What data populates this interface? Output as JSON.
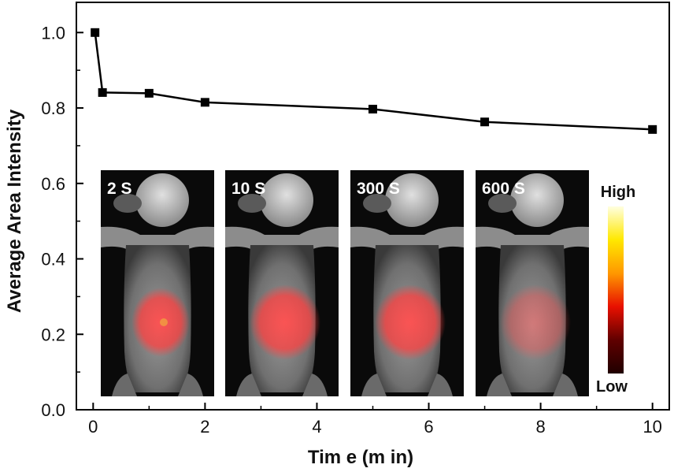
{
  "chart_data": {
    "type": "line",
    "xlabel": "Tim e (m in)",
    "ylabel": "Average Area Intensity",
    "xlim": [
      -0.3,
      10.3
    ],
    "ylim": [
      0.0,
      1.08
    ],
    "x_ticks": [
      0,
      2,
      4,
      6,
      8,
      10
    ],
    "x_tick_labels": [
      "0",
      "2",
      "4",
      "6",
      "8",
      "10"
    ],
    "y_ticks": [
      0.0,
      0.2,
      0.4,
      0.6,
      0.8,
      1.0
    ],
    "y_tick_labels": [
      "0.0",
      "0.2",
      "0.4",
      "0.6",
      "0.8",
      "1.0"
    ],
    "grid": false,
    "series": [
      {
        "color": "#000000",
        "marker": "square",
        "x": [
          0.0333,
          0.1667,
          1,
          2,
          5,
          7,
          10
        ],
        "y": [
          1.0,
          0.841,
          0.839,
          0.815,
          0.797,
          0.763,
          0.743
        ]
      }
    ],
    "inset_panels": [
      "2 S",
      "10 S",
      "300 S",
      "600 S"
    ],
    "colorbar": {
      "high_label": "High",
      "low_label": "Low",
      "colors": [
        "#ffffe0",
        "#ffe800",
        "#ff9800",
        "#e81000",
        "#600000",
        "#200000"
      ]
    }
  }
}
